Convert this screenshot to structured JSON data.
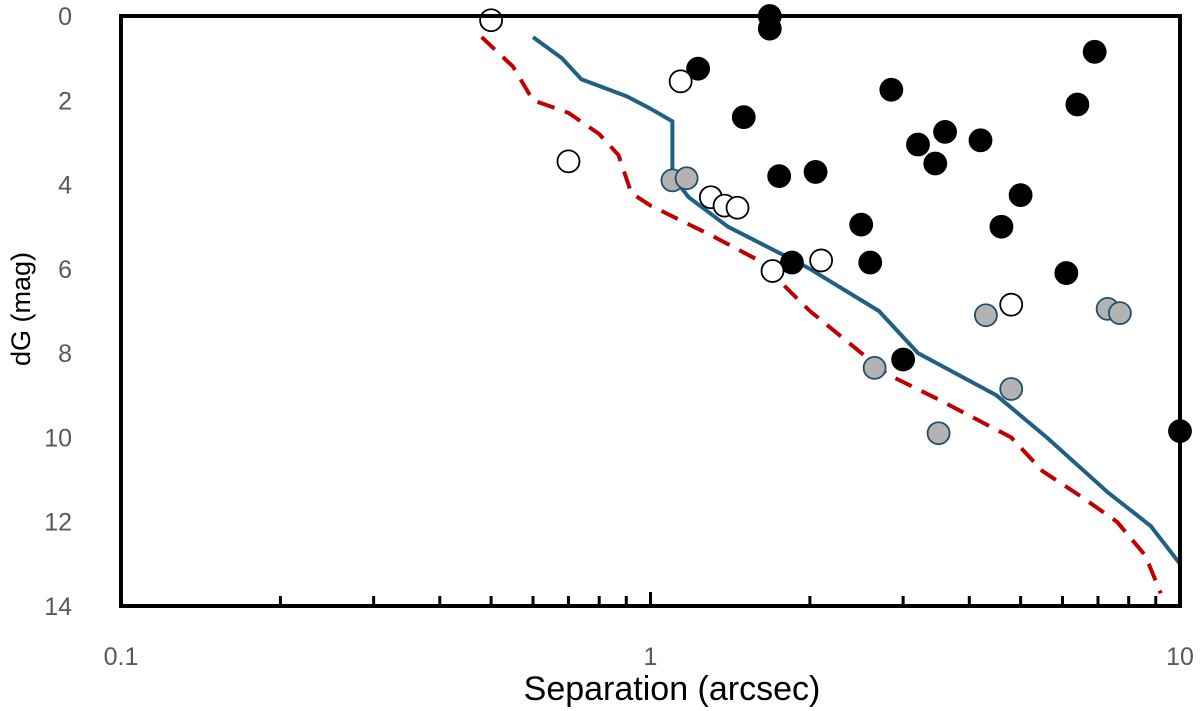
{
  "chart_data": {
    "type": "scatter",
    "xscale": "log",
    "xlim": [
      0.1,
      10
    ],
    "ylim": [
      14,
      0
    ],
    "y_inverted": true,
    "xlabel": "Separation (arcsec)",
    "ylabel": "dG (mag)",
    "xticks": [
      {
        "value": 0.1,
        "label": "0.1"
      },
      {
        "value": 1,
        "label": "1"
      },
      {
        "value": 10,
        "label": "10"
      }
    ],
    "yticks": [
      {
        "value": 0,
        "label": "0"
      },
      {
        "value": 2,
        "label": "2"
      },
      {
        "value": 4,
        "label": "4"
      },
      {
        "value": 6,
        "label": "6"
      },
      {
        "value": 8,
        "label": "8"
      },
      {
        "value": 10,
        "label": "10"
      },
      {
        "value": 12,
        "label": "12"
      },
      {
        "value": 14,
        "label": "14"
      }
    ],
    "lines": [
      {
        "style": "solid",
        "color": "#1f6084",
        "points": [
          [
            0.6,
            0.5
          ],
          [
            0.68,
            1.0
          ],
          [
            0.74,
            1.5
          ],
          [
            0.9,
            1.9
          ],
          [
            1.0,
            2.2
          ],
          [
            1.1,
            2.5
          ],
          [
            1.1,
            3.8
          ],
          [
            1.18,
            4.3
          ],
          [
            1.4,
            5.0
          ],
          [
            1.8,
            5.7
          ],
          [
            2.0,
            6.0
          ],
          [
            2.7,
            7.0
          ],
          [
            3.2,
            8.0
          ],
          [
            4.5,
            9.0
          ],
          [
            5.6,
            10.0
          ],
          [
            7.3,
            11.3
          ],
          [
            8.8,
            12.1
          ],
          [
            10.0,
            13.0
          ]
        ]
      },
      {
        "style": "dashed",
        "color": "#c00000",
        "points": [
          [
            0.48,
            0.5
          ],
          [
            0.55,
            1.2
          ],
          [
            0.6,
            2.0
          ],
          [
            0.7,
            2.3
          ],
          [
            0.8,
            2.8
          ],
          [
            0.87,
            3.3
          ],
          [
            0.92,
            4.2
          ],
          [
            1.0,
            4.5
          ],
          [
            1.3,
            5.2
          ],
          [
            1.6,
            5.8
          ],
          [
            2.0,
            7.0
          ],
          [
            2.8,
            8.5
          ],
          [
            3.5,
            9.1
          ],
          [
            4.8,
            10.0
          ],
          [
            5.5,
            10.8
          ],
          [
            6.5,
            11.4
          ],
          [
            7.6,
            12.0
          ],
          [
            8.6,
            12.8
          ],
          [
            9.2,
            13.7
          ]
        ]
      }
    ],
    "point_groups": [
      {
        "fill": "#000000",
        "points": [
          [
            1.23,
            1.25
          ],
          [
            1.68,
            0.3
          ],
          [
            1.68,
            0.0
          ],
          [
            1.5,
            2.4
          ],
          [
            1.75,
            3.8
          ],
          [
            2.85,
            1.75
          ],
          [
            2.05,
            3.7
          ],
          [
            3.2,
            3.05
          ],
          [
            3.45,
            3.5
          ],
          [
            3.6,
            2.75
          ],
          [
            4.2,
            2.95
          ],
          [
            4.6,
            5.0
          ],
          [
            5.0,
            4.25
          ],
          [
            6.4,
            2.1
          ],
          [
            6.9,
            0.85
          ],
          [
            2.5,
            4.95
          ],
          [
            2.6,
            5.85
          ],
          [
            1.85,
            5.85
          ],
          [
            6.1,
            6.1
          ],
          [
            3.0,
            8.15
          ],
          [
            10.0,
            9.85
          ]
        ]
      },
      {
        "fill": "#ffffff",
        "points": [
          [
            0.5,
            0.1
          ],
          [
            1.14,
            1.55
          ],
          [
            0.7,
            3.45
          ],
          [
            1.3,
            4.3
          ],
          [
            1.38,
            4.5
          ],
          [
            1.46,
            4.55
          ],
          [
            1.7,
            6.05
          ],
          [
            2.1,
            5.8
          ],
          [
            4.8,
            6.85
          ]
        ]
      },
      {
        "fill": "#b3b3b3",
        "points": [
          [
            1.1,
            3.9
          ],
          [
            1.17,
            3.85
          ],
          [
            2.65,
            8.35
          ],
          [
            4.3,
            7.1
          ],
          [
            4.8,
            8.85
          ],
          [
            3.5,
            9.9
          ],
          [
            7.3,
            6.95
          ],
          [
            7.7,
            7.05
          ]
        ]
      }
    ]
  }
}
